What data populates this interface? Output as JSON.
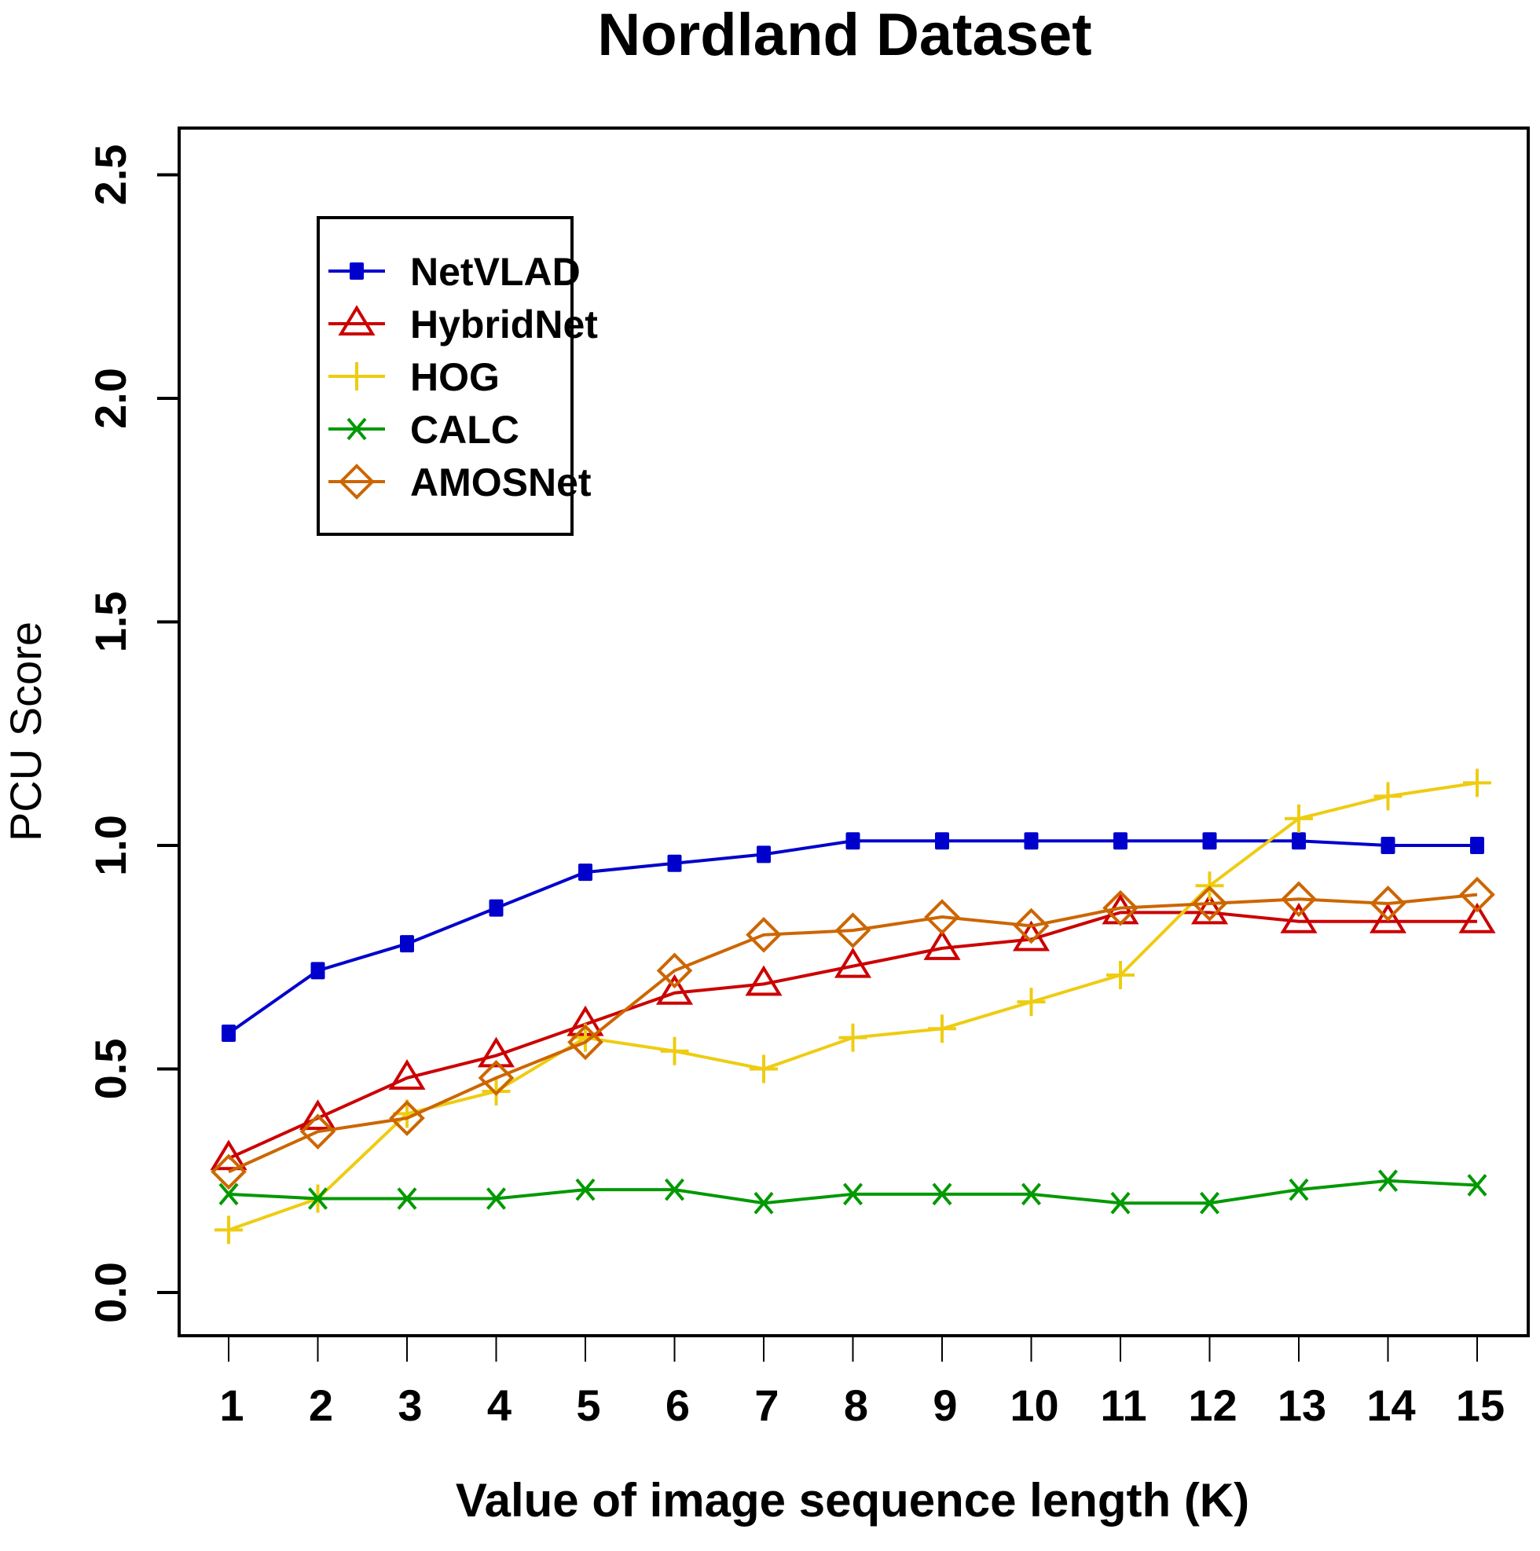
{
  "chart_data": {
    "type": "line",
    "title": "Nordland Dataset",
    "xlabel": "Value of image sequence length (K)",
    "ylabel": "PCU Score",
    "x": [
      1,
      2,
      3,
      4,
      5,
      6,
      7,
      8,
      9,
      10,
      11,
      12,
      13,
      14,
      15
    ],
    "xticks": [
      "1",
      "2",
      "3",
      "4",
      "5",
      "6",
      "7",
      "8",
      "9",
      "10",
      "11",
      "12",
      "13",
      "14",
      "15"
    ],
    "yticks": [
      "0.0",
      "0.5",
      "1.0",
      "1.5",
      "2.0",
      "2.5"
    ],
    "ylim": [
      -0.1,
      2.6
    ],
    "grid": false,
    "legend_position": "top-left",
    "series": [
      {
        "name": "NetVLAD",
        "color": "#0000cc",
        "marker": "square",
        "values": [
          0.58,
          0.72,
          0.78,
          0.86,
          0.94,
          0.96,
          0.98,
          1.01,
          1.01,
          1.01,
          1.01,
          1.01,
          1.01,
          1.0,
          1.0
        ]
      },
      {
        "name": "HybridNet",
        "color": "#cc0000",
        "marker": "triangle",
        "values": [
          0.3,
          0.39,
          0.48,
          0.53,
          0.6,
          0.67,
          0.69,
          0.73,
          0.77,
          0.79,
          0.85,
          0.85,
          0.83,
          0.83,
          0.83
        ]
      },
      {
        "name": "HOG",
        "color": "#eecc11",
        "marker": "plus",
        "values": [
          0.14,
          0.21,
          0.4,
          0.45,
          0.57,
          0.54,
          0.5,
          0.57,
          0.59,
          0.65,
          0.71,
          0.91,
          1.06,
          1.11,
          1.14
        ]
      },
      {
        "name": "CALC",
        "color": "#009900",
        "marker": "x",
        "values": [
          0.22,
          0.21,
          0.21,
          0.21,
          0.23,
          0.23,
          0.2,
          0.22,
          0.22,
          0.22,
          0.2,
          0.2,
          0.23,
          0.25,
          0.24
        ]
      },
      {
        "name": "AMOSNet",
        "color": "#cc6600",
        "marker": "diamond",
        "values": [
          0.27,
          0.36,
          0.39,
          0.48,
          0.56,
          0.72,
          0.8,
          0.81,
          0.84,
          0.82,
          0.86,
          0.87,
          0.88,
          0.87,
          0.89
        ]
      }
    ]
  }
}
